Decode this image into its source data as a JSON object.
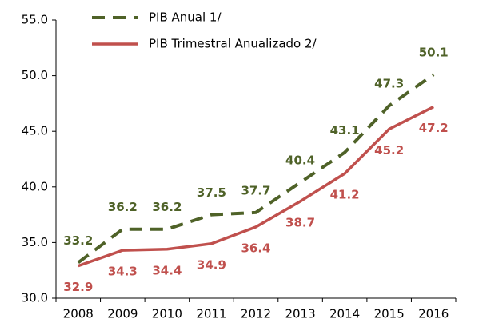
{
  "chart_data": {
    "type": "line",
    "categories": [
      "2008",
      "2009",
      "2010",
      "2011",
      "2012",
      "2013",
      "2014",
      "2015",
      "2016"
    ],
    "series": [
      {
        "name": "PIB Anual 1/",
        "color": "#4f6228",
        "dashed": true,
        "values": [
          33.2,
          36.2,
          36.2,
          37.5,
          37.7,
          40.4,
          43.1,
          47.3,
          50.1
        ]
      },
      {
        "name": "PIB Trimestral Anualizado 2/",
        "color": "#c0504d",
        "dashed": false,
        "values": [
          32.9,
          34.3,
          34.4,
          34.9,
          36.4,
          38.7,
          41.2,
          45.2,
          47.2
        ]
      }
    ],
    "ylim": [
      30,
      55
    ],
    "yticks": [
      {
        "value": 30,
        "label": "30.0"
      },
      {
        "value": 35,
        "label": "35.0"
      },
      {
        "value": 40,
        "label": "40.0"
      },
      {
        "value": 45,
        "label": "45.0"
      },
      {
        "value": 50,
        "label": "50.0"
      },
      {
        "value": 55,
        "label": "55.0"
      }
    ],
    "legend": "top"
  }
}
